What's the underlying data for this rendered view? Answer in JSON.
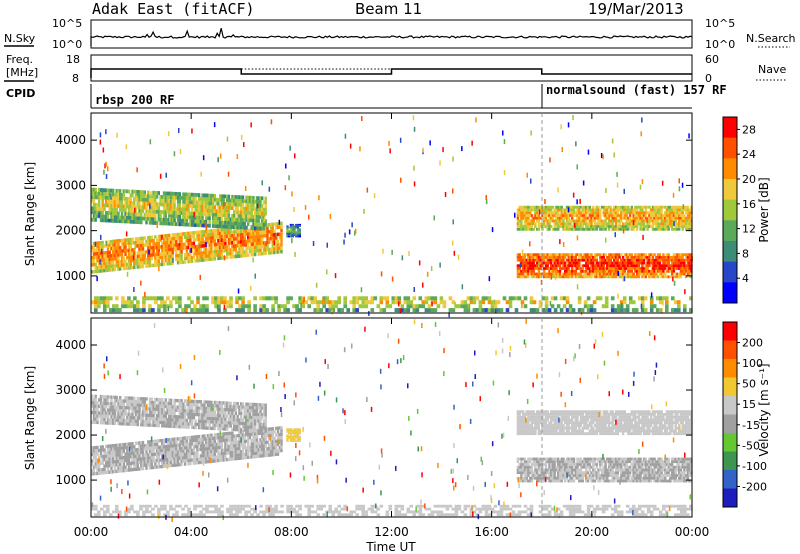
{
  "header": {
    "radar": "Adak East (fitACF)",
    "beam": "Beam 11",
    "date": "19/Mar/2013"
  },
  "strips": {
    "nsky": {
      "label": "N.Sky",
      "ticks": [
        "10^5",
        "10^0"
      ]
    },
    "nsearch": {
      "label": "N.Search",
      "ticks": [
        "10^5",
        "10^0"
      ]
    },
    "freq": {
      "label_line1": "Freq.",
      "label_line2": "[MHz]",
      "ticks": [
        "18",
        "8"
      ]
    },
    "nave": {
      "label": "Nave",
      "ticks": [
        "60",
        "0"
      ]
    },
    "cpid": {
      "label": "CPID",
      "segments": [
        {
          "name": "rbsp 200 RF",
          "start": 0,
          "end": 18
        },
        {
          "name": "normalsound (fast) 157 RF",
          "start": 18,
          "end": 24
        }
      ]
    }
  },
  "time_axis": {
    "label": "Time UT",
    "ticks": [
      "00:00",
      "04:00",
      "08:00",
      "12:00",
      "16:00",
      "20:00",
      "00:00"
    ],
    "range_hours": [
      0,
      24
    ]
  },
  "chart_data": [
    {
      "type": "heatmap",
      "title": "",
      "xlabel": "Time UT",
      "ylabel": "Slant Range [km]",
      "xlim": [
        0,
        24
      ],
      "ylim": [
        180,
        4600
      ],
      "yticks": [
        "1000",
        "2000",
        "3000",
        "4000"
      ],
      "colorbar": {
        "label": "Power [dB]",
        "ticks": [
          "4",
          "8",
          "12",
          "16",
          "20",
          "24",
          "28"
        ],
        "range": [
          0,
          30
        ],
        "colors": [
          "#0000ff",
          "#2846c8",
          "#3c8c78",
          "#5aaa5a",
          "#a0c83c",
          "#f0c83c",
          "#ff8c00",
          "#ff5000",
          "#ff0000"
        ]
      },
      "bands": [
        {
          "t0": 0.0,
          "t1": 7.6,
          "r0": 1050,
          "r1": 1750,
          "slope_r": 450,
          "value": 20
        },
        {
          "t0": 0.0,
          "t1": 7.0,
          "r0": 2200,
          "r1": 2950,
          "slope_r": -200,
          "value": 14
        },
        {
          "t0": 7.8,
          "t1": 8.3,
          "r0": 1850,
          "r1": 2150,
          "slope_r": 0,
          "value": 8
        },
        {
          "t0": 17.0,
          "t1": 24.0,
          "r0": 950,
          "r1": 1500,
          "slope_r": 0,
          "value": 24
        },
        {
          "t0": 17.0,
          "t1": 24.0,
          "r0": 2000,
          "r1": 2550,
          "slope_r": 0,
          "value": 18
        },
        {
          "t0": 0.0,
          "t1": 24.0,
          "r0": 200,
          "r1": 550,
          "slope_r": 0,
          "value": 14,
          "sparse": true
        }
      ]
    },
    {
      "type": "heatmap",
      "title": "",
      "xlabel": "Time UT",
      "ylabel": "Slant Range [km]",
      "xlim": [
        0,
        24
      ],
      "ylim": [
        180,
        4600
      ],
      "yticks": [
        "1000",
        "2000",
        "3000",
        "4000"
      ],
      "colorbar": {
        "label": "Velocity [m s⁻¹]",
        "ticks": [
          "200",
          "100",
          "50",
          "15",
          "-15",
          "-50",
          "-100",
          "-200"
        ],
        "range": [
          -250,
          250
        ],
        "colors": [
          "#1e1ebe",
          "#3264c8",
          "#3c9650",
          "#64c832",
          "#a0a0a0",
          "#c8c8c8",
          "#f0c832",
          "#ff8c00",
          "#ff5000",
          "#ff0000"
        ]
      },
      "bands": [
        {
          "t0": 0.0,
          "t1": 7.6,
          "r0": 1100,
          "r1": 1750,
          "slope_r": 450,
          "value": 0
        },
        {
          "t0": 0.0,
          "t1": 7.0,
          "r0": 2250,
          "r1": 2900,
          "slope_r": -200,
          "value": 0
        },
        {
          "t0": 7.8,
          "t1": 8.3,
          "r0": 1850,
          "r1": 2150,
          "slope_r": 0,
          "value": 60
        },
        {
          "t0": 17.0,
          "t1": 24.0,
          "r0": 950,
          "r1": 1500,
          "slope_r": 0,
          "value": 0
        },
        {
          "t0": 17.0,
          "t1": 24.0,
          "r0": 2000,
          "r1": 2550,
          "slope_r": 0,
          "value": 20
        },
        {
          "t0": 0.0,
          "t1": 24.0,
          "r0": 200,
          "r1": 450,
          "slope_r": 0,
          "value": 30,
          "sparse": true
        }
      ]
    }
  ]
}
